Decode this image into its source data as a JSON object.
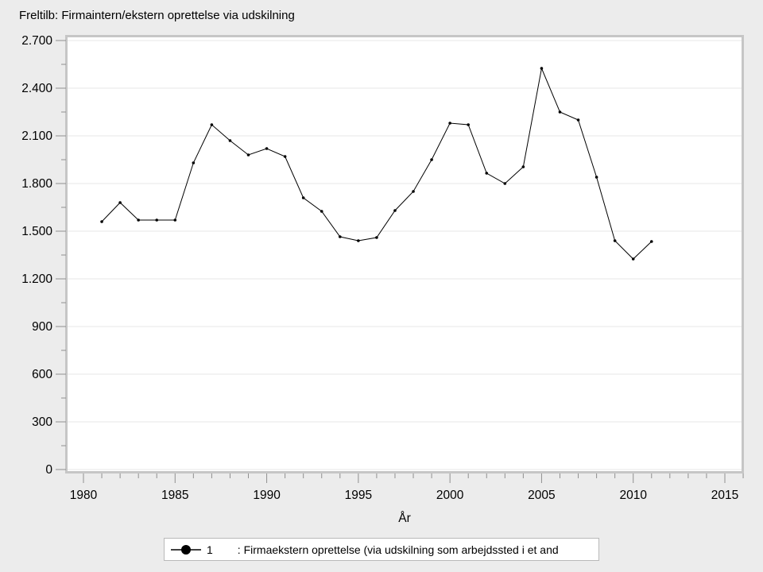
{
  "title": "Freltilb: Firmaintern/ekstern oprettelse via udskilning",
  "chart_data": {
    "type": "line",
    "title": "Freltilb: Firmaintern/ekstern oprettelse via udskilning",
    "xlabel": "År",
    "ylabel": "",
    "x": [
      1981,
      1982,
      1983,
      1984,
      1985,
      1986,
      1987,
      1988,
      1989,
      1990,
      1991,
      1992,
      1993,
      1994,
      1995,
      1996,
      1997,
      1998,
      1999,
      2000,
      2001,
      2002,
      2003,
      2004,
      2005,
      2006,
      2007,
      2008,
      2009,
      2010,
      2011
    ],
    "series": [
      {
        "name": "1",
        "values": [
          1560,
          1680,
          1570,
          1570,
          1570,
          1930,
          2170,
          2070,
          1980,
          2020,
          1970,
          1710,
          1625,
          1465,
          1440,
          1460,
          1630,
          1750,
          1950,
          2180,
          2170,
          1865,
          1800,
          1905,
          2525,
          2250,
          2200,
          1840,
          1440,
          1325,
          1435
        ]
      }
    ],
    "xlim": [
      1980,
      2016
    ],
    "ylim": [
      0,
      2700
    ],
    "xticks": [
      1980,
      1985,
      1990,
      1995,
      2000,
      2005,
      2010,
      2015
    ],
    "xtick_labels": [
      "1980",
      "1985",
      "1990",
      "1995",
      "2000",
      "2005",
      "2010",
      "2015"
    ],
    "ytick_values": [
      0,
      300,
      600,
      900,
      1200,
      1500,
      1800,
      2100,
      2400,
      2700
    ],
    "ytick_labels": [
      "0",
      "300",
      "600",
      "900",
      "1.200",
      "1.500",
      "1.800",
      "2.100",
      "2.400",
      "2.700"
    ],
    "minor_x_step": 1,
    "minor_y_step": 150,
    "grid": "horizontal-major-only",
    "legend_position": "bottom",
    "marker": "filled-circle"
  },
  "legend": {
    "series_label": "1",
    "description": ": Firmaekstern oprettelse (via udskilning som arbejdssted i et and"
  },
  "colors": {
    "background": "#ececec",
    "plot_background": "#ffffff",
    "plot_border": "#c6c6c6",
    "gridline": "#e7e7e7",
    "tick": "#8f8f8f",
    "text": "#000000",
    "series": "#000000",
    "legend_border": "#b9b9b9",
    "legend_background": "#ffffff"
  }
}
